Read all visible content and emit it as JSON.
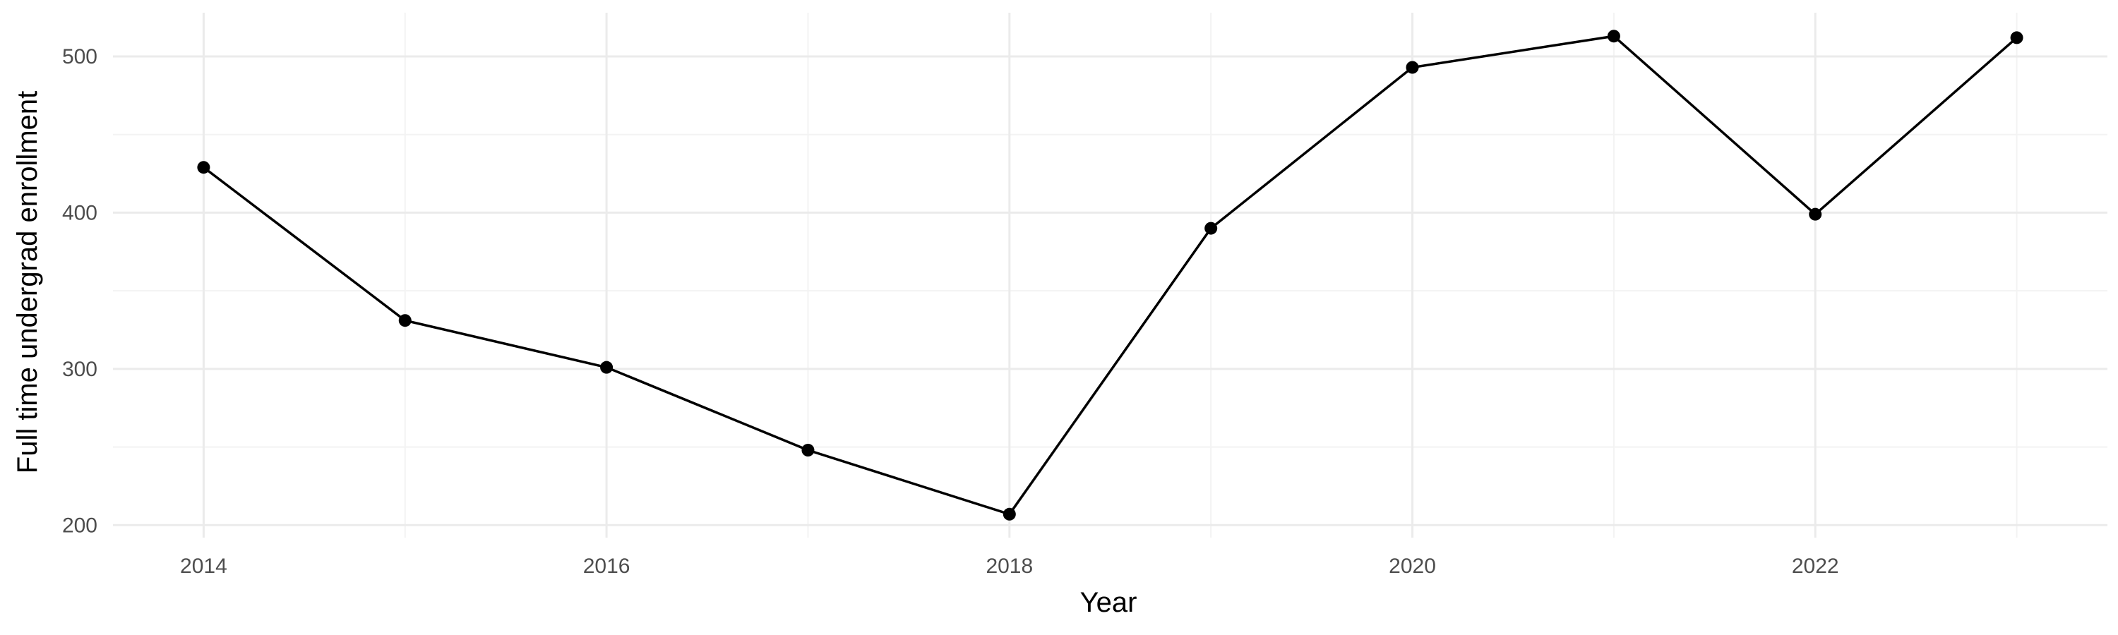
{
  "chart_data": {
    "type": "line",
    "title": "",
    "xlabel": "Year",
    "ylabel": "Full time undergrad enrollment",
    "x": [
      2014,
      2015,
      2016,
      2017,
      2018,
      2019,
      2020,
      2021,
      2022,
      2023
    ],
    "series": [
      {
        "values": [
          429,
          331,
          301,
          248,
          207,
          390,
          493,
          513,
          399,
          512
        ]
      }
    ],
    "xlim": [
      2013.55,
      2023.45
    ],
    "ylim": [
      192,
      528
    ],
    "x_ticks": [
      2014,
      2016,
      2018,
      2020,
      2022
    ],
    "x_tick_labels": [
      "2014",
      "2016",
      "2018",
      "2020",
      "2022"
    ],
    "x_minor_ticks": [
      2015,
      2017,
      2019,
      2021,
      2023
    ],
    "y_ticks": [
      200,
      300,
      400,
      500
    ],
    "y_tick_labels": [
      "200",
      "300",
      "400",
      "500"
    ],
    "y_minor_ticks": [
      250,
      350,
      450
    ],
    "grid": true,
    "legend": "none",
    "colors": {
      "line": "#000000",
      "point": "#000000",
      "grid_major": "#ebebeb",
      "grid_minor": "#f3f3f3"
    }
  }
}
